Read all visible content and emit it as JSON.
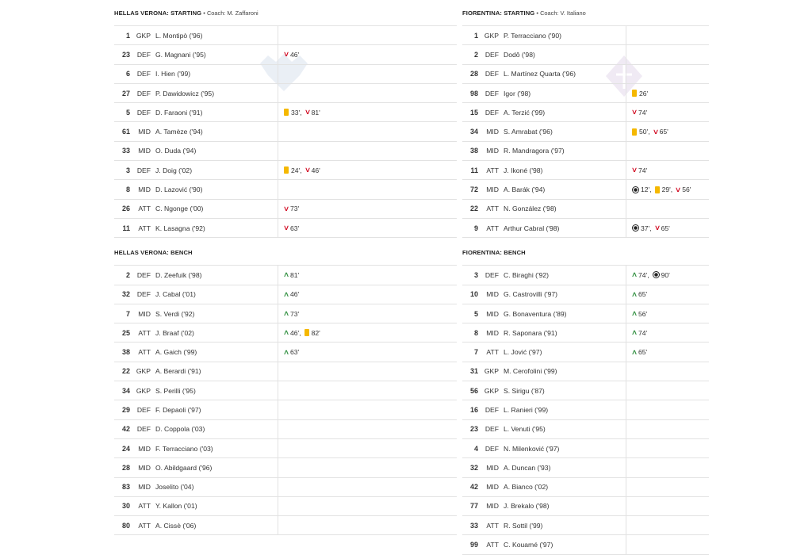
{
  "home": {
    "starting_title": "HELLAS VERONA: STARTING",
    "coach": "• Coach: M. Zaffaroni",
    "bench_title": "HELLAS VERONA: BENCH",
    "starting": [
      {
        "num": "1",
        "pos": "GKP",
        "name": "L. Montipò ('96)",
        "events": []
      },
      {
        "num": "23",
        "pos": "DEF",
        "name": "G. Magnani ('95)",
        "events": [
          {
            "type": "sub-off",
            "min": "46'"
          }
        ]
      },
      {
        "num": "6",
        "pos": "DEF",
        "name": "I. Hien ('99)",
        "events": []
      },
      {
        "num": "27",
        "pos": "DEF",
        "name": "P. Dawidowicz ('95)",
        "events": []
      },
      {
        "num": "5",
        "pos": "DEF",
        "name": "D. Faraoni ('91)",
        "events": [
          {
            "type": "yellow",
            "min": "33',"
          },
          {
            "type": "sub-off",
            "min": "81'"
          }
        ]
      },
      {
        "num": "61",
        "pos": "MID",
        "name": "A. Tamèze ('94)",
        "events": []
      },
      {
        "num": "33",
        "pos": "MID",
        "name": "O. Duda ('94)",
        "events": []
      },
      {
        "num": "3",
        "pos": "DEF",
        "name": "J. Doig ('02)",
        "events": [
          {
            "type": "yellow",
            "min": "24',"
          },
          {
            "type": "sub-off",
            "min": "46'"
          }
        ]
      },
      {
        "num": "8",
        "pos": "MID",
        "name": "D. Lazović ('90)",
        "events": []
      },
      {
        "num": "26",
        "pos": "ATT",
        "name": "C. Ngonge ('00)",
        "events": [
          {
            "type": "sub-off",
            "min": "73'"
          }
        ]
      },
      {
        "num": "11",
        "pos": "ATT",
        "name": "K. Lasagna ('92)",
        "events": [
          {
            "type": "sub-off",
            "min": "63'"
          }
        ]
      }
    ],
    "bench": [
      {
        "num": "2",
        "pos": "DEF",
        "name": "D. Zeefuik ('98)",
        "events": [
          {
            "type": "sub-on",
            "min": "81'"
          }
        ]
      },
      {
        "num": "32",
        "pos": "DEF",
        "name": "J. Cabal ('01)",
        "events": [
          {
            "type": "sub-on",
            "min": "46'"
          }
        ]
      },
      {
        "num": "7",
        "pos": "MID",
        "name": "S. Verdi ('92)",
        "events": [
          {
            "type": "sub-on",
            "min": "73'"
          }
        ]
      },
      {
        "num": "25",
        "pos": "ATT",
        "name": "J. Braaf ('02)",
        "events": [
          {
            "type": "sub-on",
            "min": "46',"
          },
          {
            "type": "yellow",
            "min": "82'"
          }
        ]
      },
      {
        "num": "38",
        "pos": "ATT",
        "name": "A. Gaich ('99)",
        "events": [
          {
            "type": "sub-on",
            "min": "63'"
          }
        ]
      },
      {
        "num": "22",
        "pos": "GKP",
        "name": "A. Berardi ('91)",
        "events": []
      },
      {
        "num": "34",
        "pos": "GKP",
        "name": "S. Perilli ('95)",
        "events": []
      },
      {
        "num": "29",
        "pos": "DEF",
        "name": "F. Depaoli ('97)",
        "events": []
      },
      {
        "num": "42",
        "pos": "DEF",
        "name": "D. Coppola ('03)",
        "events": []
      },
      {
        "num": "24",
        "pos": "MID",
        "name": "F. Terracciano ('03)",
        "events": []
      },
      {
        "num": "28",
        "pos": "MID",
        "name": "O. Abildgaard ('96)",
        "events": []
      },
      {
        "num": "83",
        "pos": "MID",
        "name": "Joselito ('04)",
        "events": []
      },
      {
        "num": "30",
        "pos": "ATT",
        "name": "Y. Kallon ('01)",
        "events": []
      },
      {
        "num": "80",
        "pos": "ATT",
        "name": "A. Cissè ('06)",
        "events": []
      }
    ]
  },
  "away": {
    "starting_title": "FIORENTINA: STARTING",
    "coach": "• Coach: V. Italiano",
    "bench_title": "FIORENTINA: BENCH",
    "starting": [
      {
        "num": "1",
        "pos": "GKP",
        "name": "P. Terracciano ('90)",
        "events": []
      },
      {
        "num": "2",
        "pos": "DEF",
        "name": "Dodô ('98)",
        "events": []
      },
      {
        "num": "28",
        "pos": "DEF",
        "name": "L. Martínez Quarta ('96)",
        "events": []
      },
      {
        "num": "98",
        "pos": "DEF",
        "name": "Igor ('98)",
        "events": [
          {
            "type": "yellow",
            "min": "26'"
          }
        ]
      },
      {
        "num": "15",
        "pos": "DEF",
        "name": "A. Terzić ('99)",
        "events": [
          {
            "type": "sub-off",
            "min": "74'"
          }
        ]
      },
      {
        "num": "34",
        "pos": "MID",
        "name": "S. Amrabat ('96)",
        "events": [
          {
            "type": "yellow",
            "min": "50',"
          },
          {
            "type": "sub-off",
            "min": "65'"
          }
        ]
      },
      {
        "num": "38",
        "pos": "MID",
        "name": "R. Mandragora ('97)",
        "events": []
      },
      {
        "num": "11",
        "pos": "ATT",
        "name": "J. Ikoné ('98)",
        "events": [
          {
            "type": "sub-off",
            "min": "74'"
          }
        ]
      },
      {
        "num": "72",
        "pos": "MID",
        "name": "A. Barák ('94)",
        "events": [
          {
            "type": "goal",
            "min": "12',"
          },
          {
            "type": "yellow",
            "min": "29',"
          },
          {
            "type": "sub-off",
            "min": "56'"
          }
        ]
      },
      {
        "num": "22",
        "pos": "ATT",
        "name": "N. González ('98)",
        "events": []
      },
      {
        "num": "9",
        "pos": "ATT",
        "name": "Arthur Cabral ('98)",
        "events": [
          {
            "type": "goal",
            "min": "37',"
          },
          {
            "type": "sub-off",
            "min": "65'"
          }
        ]
      }
    ],
    "bench": [
      {
        "num": "3",
        "pos": "DEF",
        "name": "C. Biraghi ('92)",
        "events": [
          {
            "type": "sub-on",
            "min": "74',"
          },
          {
            "type": "goal",
            "min": "90'"
          }
        ]
      },
      {
        "num": "10",
        "pos": "MID",
        "name": "G. Castrovilli ('97)",
        "events": [
          {
            "type": "sub-on",
            "min": "65'"
          }
        ]
      },
      {
        "num": "5",
        "pos": "MID",
        "name": "G. Bonaventura ('89)",
        "events": [
          {
            "type": "sub-on",
            "min": "56'"
          }
        ]
      },
      {
        "num": "8",
        "pos": "MID",
        "name": "R. Saponara ('91)",
        "events": [
          {
            "type": "sub-on",
            "min": "74'"
          }
        ]
      },
      {
        "num": "7",
        "pos": "ATT",
        "name": "L. Jović ('97)",
        "events": [
          {
            "type": "sub-on",
            "min": "65'"
          }
        ]
      },
      {
        "num": "31",
        "pos": "GKP",
        "name": "M. Cerofolini ('99)",
        "events": []
      },
      {
        "num": "56",
        "pos": "GKP",
        "name": "S. Sirigu ('87)",
        "events": []
      },
      {
        "num": "16",
        "pos": "DEF",
        "name": "L. Ranieri ('99)",
        "events": []
      },
      {
        "num": "23",
        "pos": "DEF",
        "name": "L. Venuti ('95)",
        "events": []
      },
      {
        "num": "4",
        "pos": "DEF",
        "name": "N. Milenković ('97)",
        "events": []
      },
      {
        "num": "32",
        "pos": "MID",
        "name": "A. Duncan ('93)",
        "events": []
      },
      {
        "num": "42",
        "pos": "MID",
        "name": "A. Bianco ('02)",
        "events": []
      },
      {
        "num": "77",
        "pos": "MID",
        "name": "J. Brekalo ('98)",
        "events": []
      },
      {
        "num": "33",
        "pos": "ATT",
        "name": "R. Sottil ('99)",
        "events": []
      },
      {
        "num": "99",
        "pos": "ATT",
        "name": "C. Kouamé ('97)",
        "events": []
      }
    ]
  },
  "icons": {
    "sub-off": "chevron-down-icon",
    "sub-on": "chevron-up-icon",
    "yellow": "yellow-card-icon",
    "goal": "soccer-ball-icon"
  },
  "colors": {
    "sub_off": "#d0021b",
    "sub_on": "#2a8c3a",
    "yellow_card": "#f5b800"
  }
}
